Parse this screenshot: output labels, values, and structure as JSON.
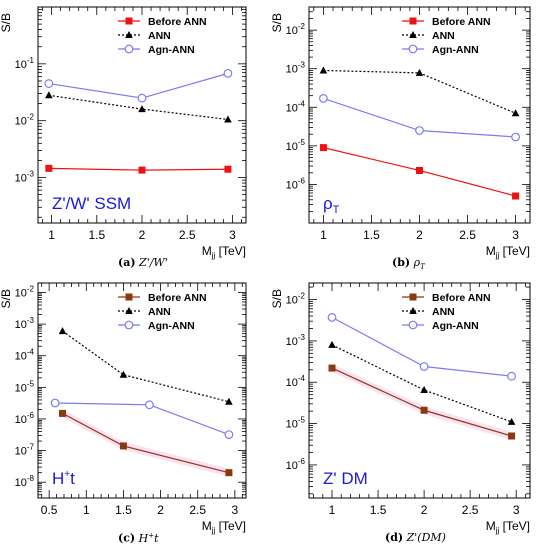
{
  "colors": {
    "before": "#ee1111",
    "before_brown": "#8b3a10",
    "ann": "#000000",
    "agn": "#7b7bf0",
    "label_blue": "#1a1ad8"
  },
  "chart_data": [
    {
      "id": "a",
      "type": "line",
      "log_y": true,
      "ylabel": "S/B",
      "xlabel": "M",
      "xlabel_sub": "jj",
      "xlabel_unit": " [TeV]",
      "xlim": [
        0.85,
        3.15
      ],
      "ylim_exp": [
        -3.8,
        0
      ],
      "xticks": [
        1,
        1.5,
        2,
        2.5,
        3
      ],
      "xtick_labels": [
        "1",
        "1.5",
        "2",
        "2.5",
        "3"
      ],
      "yticks_exp": [
        -3,
        -2,
        -1
      ],
      "ytick_labels": [
        [
          "10",
          "-3"
        ],
        [
          "10",
          "-2"
        ],
        [
          "10",
          "-1"
        ]
      ],
      "label": "Z'/W' SSM",
      "label_sub": "",
      "label_pos": "bottom-left",
      "legend": "top-right",
      "series": [
        {
          "name": "Before ANN",
          "color_key": "before",
          "marker": "square",
          "dash": "solid",
          "band": false,
          "x": [
            0.97,
            2.0,
            2.95
          ],
          "y": [
            0.00145,
            0.00135,
            0.0014
          ]
        },
        {
          "name": "ANN",
          "color_key": "ann",
          "marker": "triangle",
          "dash": "dotted",
          "band": false,
          "x": [
            0.97,
            2.0,
            2.95
          ],
          "y": [
            0.028,
            0.016,
            0.0105
          ]
        },
        {
          "name": "Agn-ANN",
          "color_key": "agn",
          "marker": "circle",
          "dash": "solid",
          "band": false,
          "x": [
            0.97,
            2.0,
            2.95
          ],
          "y": [
            0.045,
            0.025,
            0.068
          ]
        }
      ],
      "caption_letter": "(a)",
      "caption_text": "Z'/W'"
    },
    {
      "id": "b",
      "type": "line",
      "log_y": true,
      "ylabel": "S/B",
      "xlabel": "M",
      "xlabel_sub": "jj",
      "xlabel_unit": " [TeV]",
      "xlim": [
        0.85,
        3.15
      ],
      "ylim_exp": [
        -7,
        -1.4
      ],
      "xticks": [
        1,
        1.5,
        2,
        2.5,
        3
      ],
      "xtick_labels": [
        "1",
        "1.5",
        "2",
        "2.5",
        "3"
      ],
      "yticks_exp": [
        -6,
        -5,
        -4,
        -3,
        -2
      ],
      "ytick_labels": [
        [
          "10",
          "-6"
        ],
        [
          "10",
          "-5"
        ],
        [
          "10",
          "-4"
        ],
        [
          "10",
          "-3"
        ],
        [
          "10",
          "-2"
        ]
      ],
      "label": "ρ",
      "label_sub": "T",
      "label_pos": "bottom-left",
      "legend": "top-right",
      "series": [
        {
          "name": "Before ANN",
          "color_key": "before",
          "marker": "square",
          "dash": "solid",
          "band": false,
          "x": [
            1,
            2,
            3
          ],
          "y": [
            9e-06,
            2.3e-06,
            5e-07
          ]
        },
        {
          "name": "ANN",
          "color_key": "ann",
          "marker": "triangle",
          "dash": "dotted",
          "band": false,
          "x": [
            1,
            2,
            3
          ],
          "y": [
            0.0009,
            0.00078,
            7e-05
          ]
        },
        {
          "name": "Agn-ANN",
          "color_key": "agn",
          "marker": "circle",
          "dash": "solid",
          "band": false,
          "x": [
            1,
            2,
            3
          ],
          "y": [
            0.00017,
            2.5e-05,
            1.7e-05
          ]
        }
      ],
      "caption_letter": "(b)",
      "caption_text": "ρ",
      "caption_sub": "T"
    },
    {
      "id": "c",
      "type": "line",
      "log_y": true,
      "ylabel": "S/B",
      "xlabel": "M",
      "xlabel_sub": "jj",
      "xlabel_unit": " [TeV]",
      "xlim": [
        0.35,
        3.15
      ],
      "ylim_exp": [
        -8.5,
        -1.7
      ],
      "xticks": [
        0.5,
        1,
        1.5,
        2,
        2.5,
        3
      ],
      "xtick_labels": [
        "0.5",
        "1",
        "1.5",
        "2",
        "2.5",
        "3"
      ],
      "yticks_exp": [
        -8,
        -7,
        -6,
        -5,
        -4,
        -3,
        -2
      ],
      "ytick_labels": [
        [
          "10",
          "-8"
        ],
        [
          "10",
          "-7"
        ],
        [
          "10",
          "-6"
        ],
        [
          "10",
          "-5"
        ],
        [
          "10",
          "-4"
        ],
        [
          "10",
          "-3"
        ],
        [
          "10",
          "-2"
        ]
      ],
      "label": "H",
      "label_sup": "+",
      "label_after": "t",
      "label_pos": "bottom-left",
      "legend": "top-right",
      "series": [
        {
          "name": "Before ANN",
          "color_key": "before_brown",
          "marker": "square",
          "dash": "solid",
          "band": true,
          "x": [
            0.68,
            1.5,
            2.92
          ],
          "y": [
            1.5e-06,
            1.4e-07,
            2e-08
          ]
        },
        {
          "name": "ANN",
          "color_key": "ann",
          "marker": "triangle",
          "dash": "dotted",
          "band": false,
          "x": [
            0.68,
            1.5,
            2.92
          ],
          "y": [
            0.0006,
            2.5e-05,
            3.5e-06
          ]
        },
        {
          "name": "Agn-ANN",
          "color_key": "agn",
          "marker": "circle",
          "dash": "solid",
          "band": false,
          "x": [
            0.58,
            1.85,
            2.92
          ],
          "y": [
            3.2e-06,
            2.8e-06,
            3.2e-07
          ]
        }
      ],
      "caption_letter": "(c)",
      "caption_text": "H",
      "caption_sup": "+",
      "caption_after": "t"
    },
    {
      "id": "d",
      "type": "line",
      "log_y": true,
      "ylabel": "S/B",
      "xlabel": "M",
      "xlabel_sub": "jj",
      "xlabel_unit": " [TeV]",
      "xlim": [
        0.75,
        3.15
      ],
      "ylim_exp": [
        -6.8,
        -1.6
      ],
      "xticks": [
        1,
        1.5,
        2,
        2.5,
        3
      ],
      "xtick_labels": [
        "1",
        "1.5",
        "2",
        "2.5",
        "3"
      ],
      "yticks_exp": [
        -6,
        -5,
        -4,
        -3,
        -2
      ],
      "ytick_labels": [
        [
          "10",
          "-6"
        ],
        [
          "10",
          "-5"
        ],
        [
          "10",
          "-4"
        ],
        [
          "10",
          "-3"
        ],
        [
          "10",
          "-2"
        ]
      ],
      "label": "Z' DM",
      "label_sub": "",
      "label_pos": "bottom-left",
      "legend": "top-right",
      "series": [
        {
          "name": "Before ANN",
          "color_key": "before_brown",
          "marker": "square",
          "dash": "solid",
          "band": true,
          "x": [
            1,
            2,
            2.95
          ],
          "y": [
            0.00022,
            2.1e-05,
            5e-06
          ]
        },
        {
          "name": "ANN",
          "color_key": "ann",
          "marker": "triangle",
          "dash": "dotted",
          "band": false,
          "x": [
            1,
            2,
            2.95
          ],
          "y": [
            0.0008,
            6.5e-05,
            1.1e-05
          ]
        },
        {
          "name": "Agn-ANN",
          "color_key": "agn",
          "marker": "circle",
          "dash": "solid",
          "band": false,
          "x": [
            1,
            2,
            2.95
          ],
          "y": [
            0.0037,
            0.00024,
            0.00014
          ]
        }
      ],
      "caption_letter": "(d)",
      "caption_text": "Z'(DM)"
    }
  ]
}
